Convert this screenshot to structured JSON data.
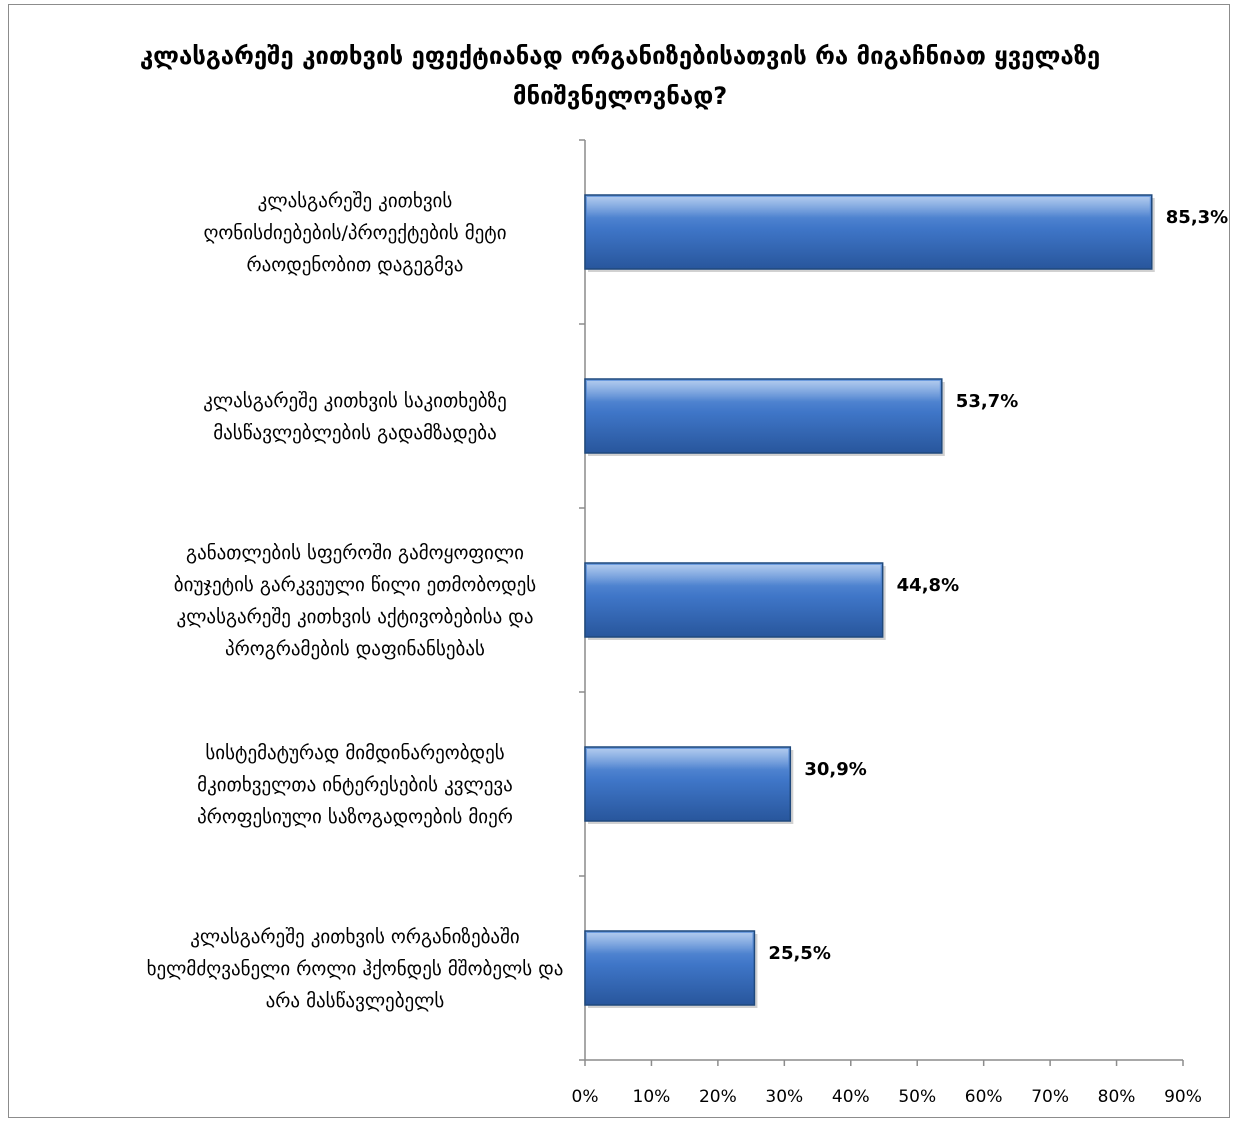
{
  "chart_data": {
    "type": "bar",
    "orientation": "horizontal",
    "title": "კლასგარეშე კითხვის ეფექტიანად ორგანიზებისათვის რა მიგაჩნიათ ყველაზე მნიშვნელოვნად?",
    "categories": [
      "კლასგარეშე კითხვის ღონისძიებების/პროექტების მეტი რაოდენობით დაგეგმვა",
      "კლასგარეშე კითხვის საკითხებზე მასწავლებლების გადამზადება",
      "განათლების სფეროში გამოყოფილი ბიუჯეტის გარკვეული წილი ეთმობოდეს კლასგარეშე კითხვის აქტივობებისა და პროგრამების დაფინანსებას",
      "სისტემატურად მიმდინარეობდეს მკითხველთა ინტერესების კვლევა პროფესიული საზოგადოების მიერ",
      "კლასგარეშე კითხვის ორგანიზებაში ხელმძღვანელი როლი ჰქონდეს მშობელს და არა მასწავლებელს"
    ],
    "category_lines": [
      [
        "კლასგარეშე კითხვის",
        "ღონისძიებების/პროექტების მეტი",
        "რაოდენობით დაგეგმვა"
      ],
      [
        "კლასგარეშე კითხვის საკითხებზე",
        "მასწავლებლების გადამზადება"
      ],
      [
        "განათლების სფეროში გამოყოფილი",
        "ბიუჯეტის გარკვეული წილი ეთმობოდეს",
        "კლასგარეშე კითხვის აქტივობებისა და",
        "პროგრამების დაფინანსებას"
      ],
      [
        "სისტემატურად მიმდინარეობდეს",
        "მკითხველთა ინტერესების კვლევა",
        "პროფესიული საზოგადოების მიერ"
      ],
      [
        "კლასგარეშე კითხვის ორგანიზებაში",
        "ხელმძღვანელი როლი ჰქონდეს მშობელს და",
        "არა მასწავლებელს"
      ]
    ],
    "values": [
      85.3,
      53.7,
      44.8,
      30.9,
      25.5
    ],
    "value_labels": [
      "85,3%",
      "53,7%",
      "44,8%",
      "30,9%",
      "25,5%"
    ],
    "xlim": [
      0,
      90
    ],
    "ticks": [
      0,
      10,
      20,
      30,
      40,
      50,
      60,
      70,
      80,
      90
    ],
    "tick_labels": [
      "0%",
      "10%",
      "20%",
      "30%",
      "40%",
      "50%",
      "60%",
      "70%",
      "80%",
      "90%"
    ],
    "xlabel": "",
    "ylabel": "",
    "grid": false,
    "legend": "none",
    "colors": {
      "bar_fill_light": "#6f9ee0",
      "bar_fill_mid": "#3f76c8",
      "bar_fill_dark": "#28569c",
      "bar_edge": "#1f497d",
      "axis": "#8c8c8c"
    }
  }
}
